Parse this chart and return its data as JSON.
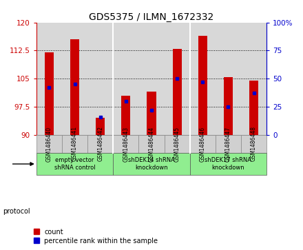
{
  "title": "GDS5375 / ILMN_1672332",
  "samples": [
    "GSM1486440",
    "GSM1486441",
    "GSM1486442",
    "GSM1486443",
    "GSM1486444",
    "GSM1486445",
    "GSM1486446",
    "GSM1486447",
    "GSM1486448"
  ],
  "count_values": [
    112.0,
    115.5,
    94.5,
    100.5,
    101.5,
    113.0,
    116.5,
    105.5,
    104.5
  ],
  "percentile_values": [
    42,
    45,
    16,
    30,
    22,
    50,
    47,
    25,
    37
  ],
  "ylim_left": [
    90,
    120
  ],
  "ylim_right": [
    0,
    100
  ],
  "yticks_left": [
    90,
    97.5,
    105,
    112.5,
    120
  ],
  "yticks_right": [
    0,
    25,
    50,
    75,
    100
  ],
  "bar_color": "#cc0000",
  "marker_color": "#0000cc",
  "group_labels": [
    "empty vector\nshRNA control",
    "shDEK14 shRNA\nknockdown",
    "shDEK17 shRNA\nknockdown"
  ],
  "group_starts": [
    0,
    3,
    6
  ],
  "group_ends": [
    3,
    6,
    9
  ],
  "group_separator_indices": [
    3,
    6
  ],
  "protocol_label": "protocol",
  "legend_count_label": "count",
  "legend_percentile_label": "percentile rank within the sample",
  "background_color": "#ffffff",
  "plot_bg_color": "#d8d8d8",
  "green_color": "#90EE90",
  "bar_width": 0.35
}
